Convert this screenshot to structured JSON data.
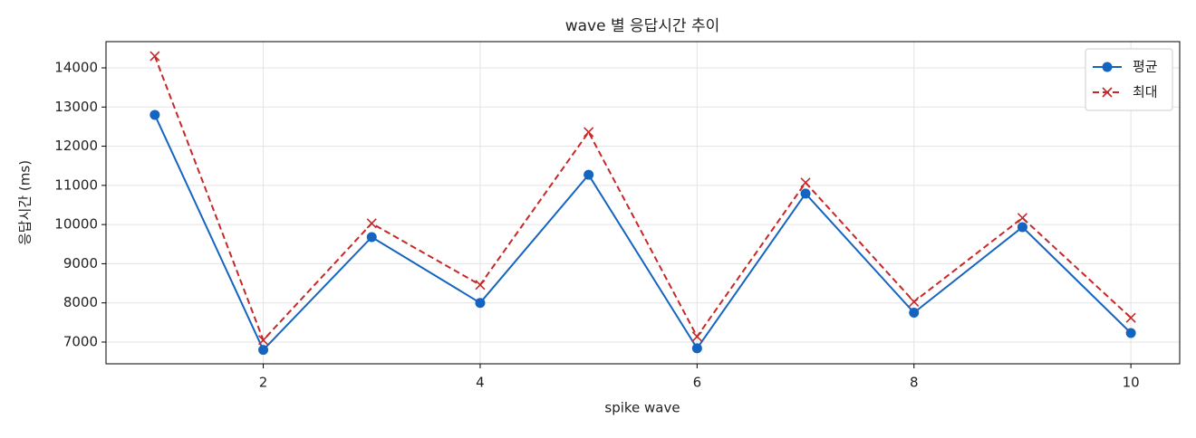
{
  "chart_data": {
    "type": "line",
    "title": "wave 별 응답시간 추이",
    "xlabel": "spike wave",
    "ylabel": "응답시간 (ms)",
    "x": [
      1,
      2,
      3,
      4,
      5,
      6,
      7,
      8,
      9,
      10
    ],
    "series": [
      {
        "name": "평균",
        "color": "#1565c0",
        "marker": "circle",
        "dash": false,
        "values": [
          12800,
          6800,
          9680,
          8000,
          11270,
          6840,
          10790,
          7750,
          9935,
          7230
        ]
      },
      {
        "name": "최대",
        "color": "#c62828",
        "marker": "x",
        "dash": true,
        "values": [
          14300,
          7050,
          10030,
          8460,
          12360,
          7140,
          11070,
          8030,
          10170,
          7620
        ]
      }
    ],
    "xlim": [
      0.55,
      10.45
    ],
    "ylim": [
      6445,
      14670
    ],
    "xticks": [
      2,
      4,
      6,
      8,
      10
    ],
    "yticks": [
      7000,
      8000,
      9000,
      10000,
      11000,
      12000,
      13000,
      14000
    ],
    "grid": true,
    "legend": "upper right"
  }
}
